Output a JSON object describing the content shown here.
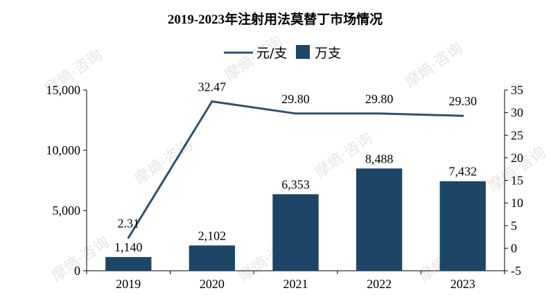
{
  "chart_data": {
    "type": "bar",
    "title": "2019-2023年注射用法莫替丁市场情况",
    "categories": [
      "2019",
      "2020",
      "2021",
      "2022",
      "2023"
    ],
    "series": [
      {
        "name": "万支",
        "type": "bar",
        "axis": "left",
        "values": [
          1140,
          2102,
          6353,
          8488,
          7432
        ],
        "labels": [
          "1,140",
          "2,102",
          "6,353",
          "8,488",
          "7,432"
        ],
        "color": "#1d4566"
      },
      {
        "name": "元/支",
        "type": "line",
        "axis": "right",
        "values": [
          2.31,
          32.47,
          29.8,
          29.8,
          29.3
        ],
        "labels": [
          "2.31",
          "32.47",
          "29.80",
          "29.80",
          "29.30"
        ],
        "color": "#2f506b"
      }
    ],
    "y_left": {
      "min": 0,
      "max": 15000,
      "ticks": [
        0,
        5000,
        10000,
        15000
      ],
      "tick_labels": [
        "0",
        "5,000",
        "10,000",
        "15,000"
      ]
    },
    "y_right": {
      "min": -5,
      "max": 35,
      "ticks": [
        -5,
        0,
        5,
        10,
        15,
        20,
        25,
        30,
        35
      ],
      "tick_labels": [
        "-5",
        "0",
        "5",
        "10",
        "15",
        "20",
        "25",
        "30",
        "35"
      ]
    },
    "legend_position": "top-center",
    "grid": false,
    "watermark": "摩熵·咨询"
  }
}
